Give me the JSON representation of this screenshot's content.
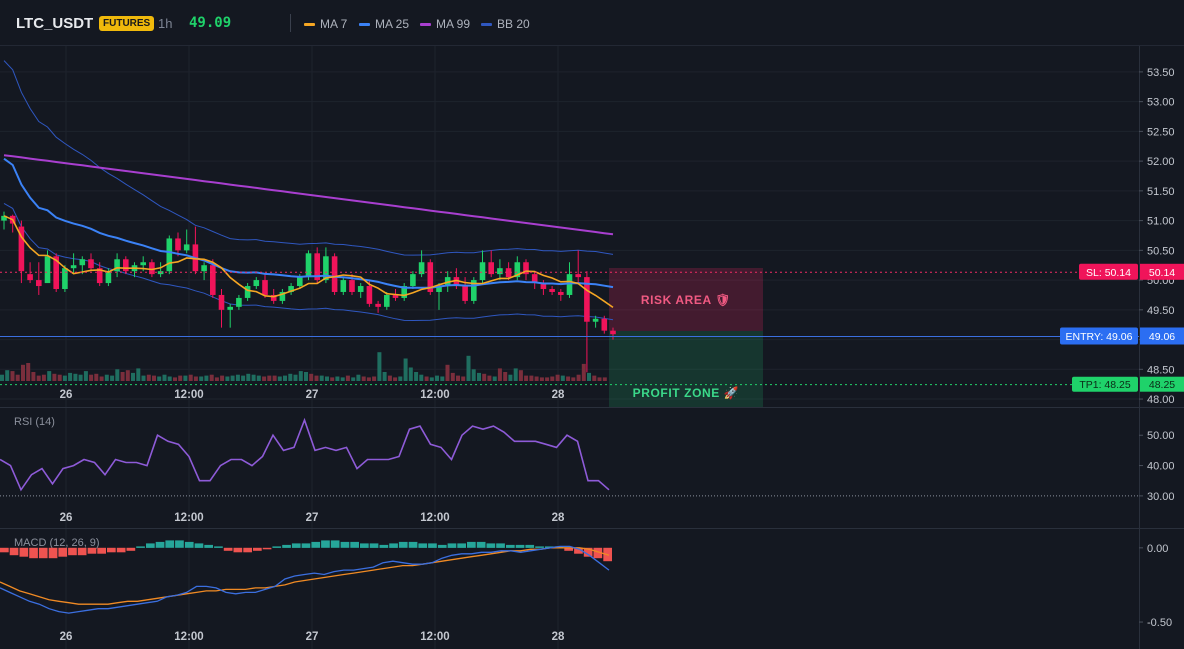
{
  "header": {
    "symbol": "LTC_USDT",
    "badge": "FUTURES",
    "timeframe": "1h",
    "last_price": "49.09",
    "legend": [
      {
        "label": "MA 7",
        "color": "#f5a623"
      },
      {
        "label": "MA 25",
        "color": "#3b82f6"
      },
      {
        "label": "MA 99",
        "color": "#a93fd0"
      },
      {
        "label": "BB 20",
        "color": "#2f57c0"
      }
    ]
  },
  "colors": {
    "up": "#26a69a",
    "down": "#ef4565",
    "up_bright": "#1fd26a",
    "down_bright": "#f0145a"
  },
  "time_labels": [
    "26",
    "12:00",
    "27",
    "12:00",
    "28"
  ],
  "price_axis": [
    "53.50",
    "53.00",
    "52.50",
    "52.00",
    "51.50",
    "51.00",
    "50.50",
    "50.00",
    "49.50",
    "49.00",
    "48.50",
    "48.00"
  ],
  "price_range": [
    47.9,
    53.7
  ],
  "rsi": {
    "title": "RSI (14)",
    "axis": [
      "50.00",
      "40.00",
      "30.00"
    ],
    "range": [
      27,
      57
    ],
    "oversold": 30,
    "values": [
      42,
      40,
      32,
      37,
      39,
      34,
      39,
      40,
      42,
      41,
      37,
      42,
      41,
      41,
      40,
      50,
      48,
      47,
      43,
      35,
      35,
      40,
      42,
      42,
      40,
      43,
      50,
      45,
      46,
      55,
      45,
      46,
      45,
      46,
      39,
      42,
      42,
      42,
      43,
      52,
      53,
      47,
      46,
      42,
      50,
      53,
      52,
      53,
      51,
      48,
      48,
      48,
      47,
      46,
      50,
      48,
      35,
      35,
      32
    ]
  },
  "macd": {
    "title": "MACD (12, 26, 9)",
    "axis": [
      "0.00",
      "-0.50"
    ],
    "range": [
      -0.52,
      0.1
    ],
    "histogram": [
      -0.03,
      -0.05,
      -0.06,
      -0.07,
      -0.07,
      -0.07,
      -0.06,
      -0.05,
      -0.05,
      -0.04,
      -0.04,
      -0.03,
      -0.03,
      -0.02,
      0.01,
      0.03,
      0.04,
      0.05,
      0.05,
      0.04,
      0.03,
      0.02,
      0.01,
      -0.02,
      -0.03,
      -0.03,
      -0.02,
      -0.01,
      0.01,
      0.02,
      0.03,
      0.03,
      0.04,
      0.05,
      0.05,
      0.04,
      0.04,
      0.03,
      0.03,
      0.02,
      0.03,
      0.04,
      0.04,
      0.03,
      0.03,
      0.02,
      0.03,
      0.03,
      0.04,
      0.04,
      0.03,
      0.03,
      0.02,
      0.02,
      0.02,
      0.01,
      0.01,
      0.01,
      -0.02,
      -0.04,
      -0.06,
      -0.07,
      -0.09
    ],
    "macd_line": [
      -0.27,
      -0.3,
      -0.33,
      -0.36,
      -0.38,
      -0.41,
      -0.43,
      -0.44,
      -0.43,
      -0.42,
      -0.41,
      -0.41,
      -0.4,
      -0.39,
      -0.38,
      -0.37,
      -0.36,
      -0.33,
      -0.32,
      -0.3,
      -0.26,
      -0.26,
      -0.27,
      -0.3,
      -0.31,
      -0.3,
      -0.3,
      -0.28,
      -0.26,
      -0.21,
      -0.19,
      -0.18,
      -0.17,
      -0.18,
      -0.16,
      -0.15,
      -0.15,
      -0.14,
      -0.13,
      -0.1,
      -0.09,
      -0.1,
      -0.11,
      -0.11,
      -0.1,
      -0.07,
      -0.05,
      -0.04,
      -0.04,
      -0.03,
      -0.03,
      -0.02,
      -0.02,
      -0.03,
      -0.02,
      -0.01,
      0.0,
      0.01,
      0.01,
      -0.01,
      -0.05,
      -0.1,
      -0.15
    ],
    "signal_line": [
      -0.23,
      -0.26,
      -0.29,
      -0.31,
      -0.33,
      -0.35,
      -0.36,
      -0.37,
      -0.38,
      -0.38,
      -0.38,
      -0.38,
      -0.37,
      -0.36,
      -0.36,
      -0.35,
      -0.34,
      -0.33,
      -0.32,
      -0.31,
      -0.3,
      -0.29,
      -0.29,
      -0.28,
      -0.28,
      -0.28,
      -0.27,
      -0.27,
      -0.26,
      -0.25,
      -0.23,
      -0.22,
      -0.21,
      -0.2,
      -0.19,
      -0.18,
      -0.17,
      -0.16,
      -0.15,
      -0.14,
      -0.13,
      -0.12,
      -0.12,
      -0.11,
      -0.1,
      -0.09,
      -0.08,
      -0.07,
      -0.06,
      -0.05,
      -0.04,
      -0.03,
      -0.02,
      -0.02,
      -0.01,
      -0.01,
      0.0,
      0.0,
      0.0,
      0.0,
      -0.01,
      -0.03,
      -0.05
    ]
  },
  "zones": {
    "risk_label": "RISK AREA 🛡",
    "profit_label": "PROFIT ZONE 🚀",
    "sl_label": "SL: 50.14",
    "sl_axis": "50.14",
    "sl_price": 50.14,
    "entry_label": "ENTRY: 49.06",
    "entry_axis": "49.06",
    "entry_price": 49.06,
    "tp_label": "TP1: 48.25",
    "tp_axis": "48.25",
    "tp_price": 48.25
  },
  "candles": [
    {
      "o": 51.0,
      "h": 51.15,
      "l": 50.85,
      "c": 51.08
    },
    {
      "o": 51.08,
      "h": 51.1,
      "l": 50.8,
      "c": 50.95
    },
    {
      "o": 50.9,
      "h": 51.0,
      "l": 49.95,
      "c": 50.15
    },
    {
      "o": 50.1,
      "h": 50.3,
      "l": 49.95,
      "c": 50.0
    },
    {
      "o": 50.0,
      "h": 50.3,
      "l": 49.75,
      "c": 49.9
    },
    {
      "o": 49.95,
      "h": 50.5,
      "l": 49.95,
      "c": 50.4
    },
    {
      "o": 50.4,
      "h": 50.45,
      "l": 49.8,
      "c": 49.85
    },
    {
      "o": 49.85,
      "h": 50.25,
      "l": 49.8,
      "c": 50.2
    },
    {
      "o": 50.2,
      "h": 50.45,
      "l": 50.1,
      "c": 50.25
    },
    {
      "o": 50.25,
      "h": 50.4,
      "l": 50.1,
      "c": 50.35
    },
    {
      "o": 50.35,
      "h": 50.45,
      "l": 50.15,
      "c": 50.2
    },
    {
      "o": 50.2,
      "h": 50.3,
      "l": 49.9,
      "c": 49.95
    },
    {
      "o": 49.95,
      "h": 50.2,
      "l": 49.9,
      "c": 50.15
    },
    {
      "o": 50.15,
      "h": 50.45,
      "l": 50.05,
      "c": 50.35
    },
    {
      "o": 50.35,
      "h": 50.4,
      "l": 50.1,
      "c": 50.15
    },
    {
      "o": 50.15,
      "h": 50.3,
      "l": 50.05,
      "c": 50.25
    },
    {
      "o": 50.25,
      "h": 50.4,
      "l": 50.15,
      "c": 50.3
    },
    {
      "o": 50.3,
      "h": 50.35,
      "l": 50.05,
      "c": 50.1
    },
    {
      "o": 50.1,
      "h": 50.3,
      "l": 50.05,
      "c": 50.15
    },
    {
      "o": 50.15,
      "h": 50.75,
      "l": 50.1,
      "c": 50.7
    },
    {
      "o": 50.7,
      "h": 50.8,
      "l": 50.4,
      "c": 50.5
    },
    {
      "o": 50.5,
      "h": 50.85,
      "l": 50.45,
      "c": 50.6
    },
    {
      "o": 50.6,
      "h": 50.9,
      "l": 50.1,
      "c": 50.15
    },
    {
      "o": 50.15,
      "h": 50.3,
      "l": 50.0,
      "c": 50.25
    },
    {
      "o": 50.25,
      "h": 50.35,
      "l": 49.7,
      "c": 49.75
    },
    {
      "o": 49.75,
      "h": 49.85,
      "l": 49.2,
      "c": 49.5
    },
    {
      "o": 49.5,
      "h": 49.6,
      "l": 49.2,
      "c": 49.55
    },
    {
      "o": 49.55,
      "h": 49.75,
      "l": 49.5,
      "c": 49.7
    },
    {
      "o": 49.7,
      "h": 49.95,
      "l": 49.65,
      "c": 49.9
    },
    {
      "o": 49.9,
      "h": 50.05,
      "l": 49.85,
      "c": 50.0
    },
    {
      "o": 50.0,
      "h": 50.1,
      "l": 49.7,
      "c": 49.75
    },
    {
      "o": 49.75,
      "h": 49.85,
      "l": 49.6,
      "c": 49.65
    },
    {
      "o": 49.65,
      "h": 49.85,
      "l": 49.6,
      "c": 49.8
    },
    {
      "o": 49.8,
      "h": 49.95,
      "l": 49.75,
      "c": 49.9
    },
    {
      "o": 49.9,
      "h": 50.1,
      "l": 49.85,
      "c": 50.05
    },
    {
      "o": 50.05,
      "h": 50.5,
      "l": 50.0,
      "c": 50.45
    },
    {
      "o": 50.45,
      "h": 50.55,
      "l": 49.95,
      "c": 50.0
    },
    {
      "o": 50.0,
      "h": 50.55,
      "l": 49.95,
      "c": 50.4
    },
    {
      "o": 50.4,
      "h": 50.45,
      "l": 49.75,
      "c": 49.8
    },
    {
      "o": 49.8,
      "h": 50.05,
      "l": 49.75,
      "c": 50.0
    },
    {
      "o": 50.0,
      "h": 50.1,
      "l": 49.75,
      "c": 49.8
    },
    {
      "o": 49.8,
      "h": 49.95,
      "l": 49.7,
      "c": 49.9
    },
    {
      "o": 49.9,
      "h": 50.0,
      "l": 49.55,
      "c": 49.6
    },
    {
      "o": 49.6,
      "h": 49.65,
      "l": 49.45,
      "c": 49.55
    },
    {
      "o": 49.55,
      "h": 49.8,
      "l": 49.5,
      "c": 49.75
    },
    {
      "o": 49.75,
      "h": 49.85,
      "l": 49.65,
      "c": 49.7
    },
    {
      "o": 49.7,
      "h": 49.95,
      "l": 49.65,
      "c": 49.9
    },
    {
      "o": 49.9,
      "h": 50.15,
      "l": 49.85,
      "c": 50.1
    },
    {
      "o": 50.1,
      "h": 50.5,
      "l": 50.05,
      "c": 50.3
    },
    {
      "o": 50.3,
      "h": 50.35,
      "l": 49.75,
      "c": 49.8
    },
    {
      "o": 49.8,
      "h": 49.95,
      "l": 49.5,
      "c": 49.9
    },
    {
      "o": 49.9,
      "h": 50.15,
      "l": 49.8,
      "c": 50.05
    },
    {
      "o": 50.05,
      "h": 50.2,
      "l": 49.85,
      "c": 49.9
    },
    {
      "o": 49.9,
      "h": 50.05,
      "l": 49.6,
      "c": 49.65
    },
    {
      "o": 49.65,
      "h": 50.05,
      "l": 49.6,
      "c": 50.0
    },
    {
      "o": 50.0,
      "h": 50.5,
      "l": 49.95,
      "c": 50.3
    },
    {
      "o": 50.3,
      "h": 50.5,
      "l": 50.05,
      "c": 50.1
    },
    {
      "o": 50.1,
      "h": 50.35,
      "l": 50.0,
      "c": 50.2
    },
    {
      "o": 50.2,
      "h": 50.3,
      "l": 50.0,
      "c": 50.05
    },
    {
      "o": 50.05,
      "h": 50.4,
      "l": 50.0,
      "c": 50.3
    },
    {
      "o": 50.3,
      "h": 50.35,
      "l": 50.0,
      "c": 50.1
    },
    {
      "o": 50.1,
      "h": 50.15,
      "l": 49.85,
      "c": 49.95
    },
    {
      "o": 49.95,
      "h": 50.0,
      "l": 49.75,
      "c": 49.85
    },
    {
      "o": 49.85,
      "h": 49.9,
      "l": 49.75,
      "c": 49.8
    },
    {
      "o": 49.8,
      "h": 49.85,
      "l": 49.65,
      "c": 49.75
    },
    {
      "o": 49.75,
      "h": 50.3,
      "l": 49.7,
      "c": 50.1
    },
    {
      "o": 50.1,
      "h": 50.5,
      "l": 49.95,
      "c": 50.05
    },
    {
      "o": 50.05,
      "h": 50.15,
      "l": 48.45,
      "c": 49.3
    },
    {
      "o": 49.3,
      "h": 49.4,
      "l": 49.2,
      "c": 49.35
    },
    {
      "o": 49.35,
      "h": 49.4,
      "l": 49.1,
      "c": 49.15
    },
    {
      "o": 49.15,
      "h": 49.2,
      "l": 49.0,
      "c": 49.09
    }
  ],
  "volumes": [
    0.35,
    0.6,
    0.55,
    0.35,
    0.9,
    1.0,
    0.5,
    0.3,
    0.35,
    0.55,
    0.4,
    0.35,
    0.3,
    0.45,
    0.4,
    0.35,
    0.55,
    0.35,
    0.4,
    0.25,
    0.35,
    0.3,
    0.65,
    0.5,
    0.6,
    0.45,
    0.7,
    0.3,
    0.35,
    0.3,
    0.25,
    0.35,
    0.25,
    0.2,
    0.3,
    0.3,
    0.35,
    0.25,
    0.25,
    0.3,
    0.35,
    0.2,
    0.3,
    0.25,
    0.3,
    0.35,
    0.3,
    0.4,
    0.35,
    0.3,
    0.25,
    0.3,
    0.3,
    0.25,
    0.3,
    0.4,
    0.35,
    0.55,
    0.5,
    0.4,
    0.3,
    0.3,
    0.25,
    0.2,
    0.25,
    0.2,
    0.3,
    0.2,
    0.35,
    0.25,
    0.2,
    0.25,
    1.6,
    0.5,
    0.3,
    0.2,
    0.25,
    1.25,
    0.75,
    0.5,
    0.35,
    0.25,
    0.2,
    0.3,
    0.25,
    0.9,
    0.45,
    0.3,
    0.25,
    1.4,
    0.65,
    0.45,
    0.4,
    0.3,
    0.25,
    0.7,
    0.5,
    0.35,
    0.7,
    0.6,
    0.3,
    0.3,
    0.25,
    0.2,
    0.2,
    0.25,
    0.35,
    0.3,
    0.25,
    0.2,
    0.35,
    0.95,
    0.45,
    0.3,
    0.2,
    0.2
  ]
}
